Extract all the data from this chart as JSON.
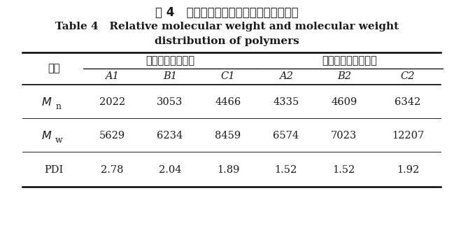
{
  "title_cn": "表 4   树脂相对分子质量和分子量分布数据",
  "title_en_line1": "Table 4   Relative molecular weight and molecular weight",
  "title_en_line2": "distribution of polymers",
  "group1_label": "丙烯酸树脂中间体",
  "group2_label": "丙烯酸改性羟基聚酯",
  "col_headers": [
    "项目",
    "A1",
    "B1",
    "C1",
    "A2",
    "B2",
    "C2"
  ],
  "rows": [
    [
      "Mn",
      "2022",
      "3053",
      "4466",
      "4335",
      "4609",
      "6342"
    ],
    [
      "Mw",
      "5629",
      "6234",
      "8459",
      "6574",
      "7023",
      "12207"
    ],
    [
      "PDI",
      "2.78",
      "2.04",
      "1.89",
      "1.52",
      "1.52",
      "1.92"
    ]
  ],
  "bg_color": "#ffffff",
  "text_color": "#1a1a1a",
  "font_size_title_cn": 12,
  "font_size_title_en": 11,
  "font_size_table": 10.5
}
